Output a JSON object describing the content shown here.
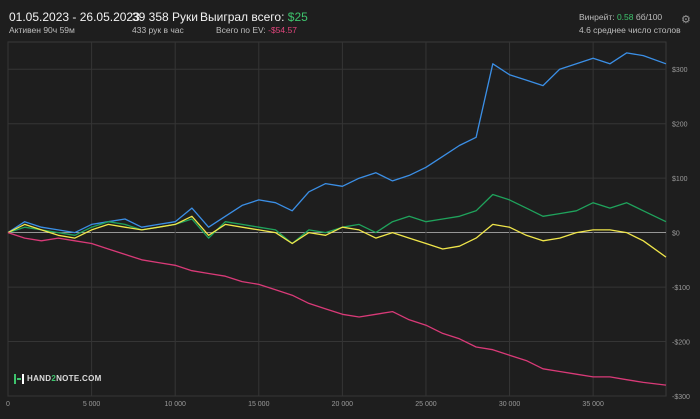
{
  "header": {
    "date_range": "01.05.2023 - 26.05.2023",
    "active": "Активен 90ч 59м",
    "hands": "39 358 Руки",
    "hands_per_hour": "433 рук в час",
    "won_label": "Выиграл всего:",
    "won_value": "$25",
    "ev_label": "Всего по EV:",
    "ev_value": "-$54.57",
    "winrate_label": "Винрейт:",
    "winrate_value": "0.58",
    "winrate_unit": "бб/100",
    "avg_tables": "4.6 среднее число столов"
  },
  "brand": {
    "prefix": "HAND",
    "two": "2",
    "suffix": "NOTE.COM"
  },
  "icons": {
    "settings": "gear-icon"
  },
  "colors": {
    "blue": "#3b8fe6",
    "green": "#1fa35c",
    "yellow": "#f0e64a",
    "pink": "#d93a78",
    "accent_green": "#3ec46d",
    "accent_red": "#e0457b"
  },
  "chart_data": {
    "type": "line",
    "xlim": [
      0,
      39358
    ],
    "ylim": [
      -300,
      350
    ],
    "x_ticks": [
      {
        "value": 0,
        "label": "0"
      },
      {
        "value": 5000,
        "label": "5 000"
      },
      {
        "value": 10000,
        "label": "10 000"
      },
      {
        "value": 15000,
        "label": "15 000"
      },
      {
        "value": 20000,
        "label": "20 000"
      },
      {
        "value": 25000,
        "label": "25 000"
      },
      {
        "value": 30000,
        "label": "30 000"
      },
      {
        "value": 35000,
        "label": "35 000"
      }
    ],
    "y_ticks": [
      {
        "value": 300,
        "label": "$300"
      },
      {
        "value": 200,
        "label": "$200"
      },
      {
        "value": 100,
        "label": "$100"
      },
      {
        "value": 0,
        "label": "$0"
      },
      {
        "value": -100,
        "label": "-$100"
      },
      {
        "value": -200,
        "label": "-$200"
      },
      {
        "value": -300,
        "label": "-$300"
      }
    ],
    "grid": true,
    "series": [
      {
        "color": "#3b8fe6",
        "x": [
          0,
          1000,
          2000,
          3000,
          4000,
          5000,
          6000,
          7000,
          8000,
          9000,
          10000,
          11000,
          12000,
          13000,
          14000,
          15000,
          16000,
          17000,
          18000,
          19000,
          20000,
          21000,
          22000,
          23000,
          24000,
          25000,
          26000,
          27000,
          28000,
          29000,
          30000,
          31000,
          32000,
          33000,
          34000,
          35000,
          36000,
          37000,
          38000,
          39358
        ],
        "y": [
          0,
          20,
          10,
          5,
          0,
          15,
          20,
          25,
          10,
          15,
          20,
          45,
          10,
          30,
          50,
          60,
          55,
          40,
          75,
          90,
          85,
          100,
          110,
          95,
          105,
          120,
          140,
          160,
          175,
          310,
          290,
          280,
          270,
          300,
          310,
          320,
          310,
          330,
          325,
          310
        ]
      },
      {
        "color": "#1fa35c",
        "x": [
          0,
          1000,
          2000,
          3000,
          4000,
          5000,
          6000,
          7000,
          8000,
          9000,
          10000,
          11000,
          12000,
          13000,
          14000,
          15000,
          16000,
          17000,
          18000,
          19000,
          20000,
          21000,
          22000,
          23000,
          24000,
          25000,
          26000,
          27000,
          28000,
          29000,
          30000,
          31000,
          32000,
          33000,
          34000,
          35000,
          36000,
          37000,
          38000,
          39358
        ],
        "y": [
          0,
          10,
          5,
          0,
          -5,
          10,
          20,
          15,
          5,
          10,
          15,
          25,
          -10,
          20,
          15,
          10,
          5,
          -20,
          5,
          0,
          10,
          15,
          0,
          20,
          30,
          20,
          25,
          30,
          40,
          70,
          60,
          45,
          30,
          35,
          40,
          55,
          45,
          55,
          40,
          20
        ]
      },
      {
        "color": "#f0e64a",
        "x": [
          0,
          1000,
          2000,
          3000,
          4000,
          5000,
          6000,
          7000,
          8000,
          9000,
          10000,
          11000,
          12000,
          13000,
          14000,
          15000,
          16000,
          17000,
          18000,
          19000,
          20000,
          21000,
          22000,
          23000,
          24000,
          25000,
          26000,
          27000,
          28000,
          29000,
          30000,
          31000,
          32000,
          33000,
          34000,
          35000,
          36000,
          37000,
          38000,
          39358
        ],
        "y": [
          0,
          15,
          5,
          -5,
          -10,
          5,
          15,
          10,
          5,
          10,
          15,
          30,
          -5,
          15,
          10,
          5,
          0,
          -20,
          0,
          -5,
          10,
          5,
          -10,
          0,
          -10,
          -20,
          -30,
          -25,
          -10,
          15,
          10,
          -5,
          -15,
          -10,
          0,
          5,
          5,
          0,
          -15,
          -45
        ]
      },
      {
        "color": "#d93a78",
        "x": [
          0,
          1000,
          2000,
          3000,
          4000,
          5000,
          6000,
          7000,
          8000,
          9000,
          10000,
          11000,
          12000,
          13000,
          14000,
          15000,
          16000,
          17000,
          18000,
          19000,
          20000,
          21000,
          22000,
          23000,
          24000,
          25000,
          26000,
          27000,
          28000,
          29000,
          30000,
          31000,
          32000,
          33000,
          34000,
          35000,
          36000,
          37000,
          38000,
          39358
        ],
        "y": [
          0,
          -10,
          -15,
          -10,
          -15,
          -20,
          -30,
          -40,
          -50,
          -55,
          -60,
          -70,
          -75,
          -80,
          -90,
          -95,
          -105,
          -115,
          -130,
          -140,
          -150,
          -155,
          -150,
          -145,
          -160,
          -170,
          -185,
          -195,
          -210,
          -215,
          -225,
          -235,
          -250,
          -255,
          -260,
          -265,
          -265,
          -270,
          -275,
          -280
        ]
      }
    ]
  }
}
